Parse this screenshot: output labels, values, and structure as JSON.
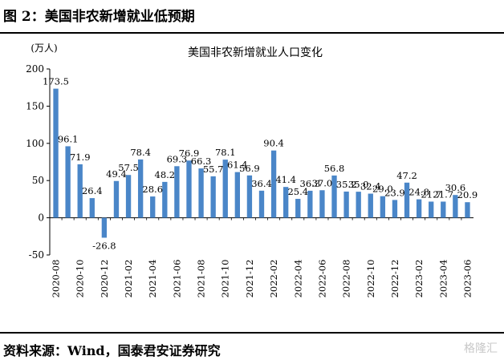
{
  "figure_title": "图 2：美国非农新增就业低预期",
  "source": "资料来源：Wind，国泰君安证券研究",
  "watermark": "格隆汇",
  "chart_data": {
    "type": "bar",
    "title": "美国非农新增就业人口变化",
    "unit": "(万人)",
    "xlabel": "",
    "ylabel": "",
    "ylim": [
      -50,
      200
    ],
    "yticks": [
      -50,
      0,
      50,
      100,
      150,
      200
    ],
    "bar_color": "#4a86c8",
    "grid": false,
    "categories": [
      "2020-08",
      "2020-09",
      "2020-10",
      "2020-11",
      "2020-12",
      "2021-01",
      "2021-02",
      "2021-03",
      "2021-04",
      "2021-05",
      "2021-06",
      "2021-07",
      "2021-08",
      "2021-09",
      "2021-10",
      "2021-11",
      "2021-12",
      "2022-01",
      "2022-02",
      "2022-03",
      "2022-04",
      "2022-05",
      "2022-06",
      "2022-07",
      "2022-08",
      "2022-09",
      "2022-10",
      "2022-11",
      "2022-12",
      "2023-01",
      "2023-02",
      "2023-03",
      "2023-04",
      "2023-05",
      "2023-06"
    ],
    "tick_labels": [
      "2020-08",
      "2020-10",
      "2020-12",
      "2021-02",
      "2021-04",
      "2021-06",
      "2021-08",
      "2021-10",
      "2021-12",
      "2022-02",
      "2022-04",
      "2022-06",
      "2022-08",
      "2022-10",
      "2022-12",
      "2023-02",
      "2023-04",
      "2023-06"
    ],
    "values": [
      173.5,
      96.1,
      71.9,
      26.4,
      -26.8,
      49.4,
      57.5,
      78.4,
      28.6,
      48.2,
      69.3,
      76.9,
      66.3,
      55.7,
      78.1,
      61.4,
      56.9,
      36.4,
      90.4,
      41.4,
      25.4,
      36.3,
      37.0,
      56.8,
      35.2,
      35.0,
      32.4,
      29.0,
      23.9,
      47.2,
      24.8,
      21.7,
      21.7,
      30.6,
      20.9
    ],
    "data_labels": [
      "173.5",
      "96.1",
      "71.9",
      "26.4",
      "-26.8",
      "49.4",
      "57.5",
      "78.4",
      "28.6",
      "48.2",
      "69.3",
      "76.9",
      "66.3",
      "55.7",
      "78.1",
      "61.4",
      "56.9",
      "36.4",
      "90.4",
      "41.4",
      "25.4",
      "36.3",
      "37.0",
      "56.8",
      "35.2",
      "35.0",
      "32.4",
      "29.0",
      "23.9",
      "47.2",
      "24.8",
      "21.7",
      "21.7",
      "30.6",
      "20.9"
    ]
  }
}
